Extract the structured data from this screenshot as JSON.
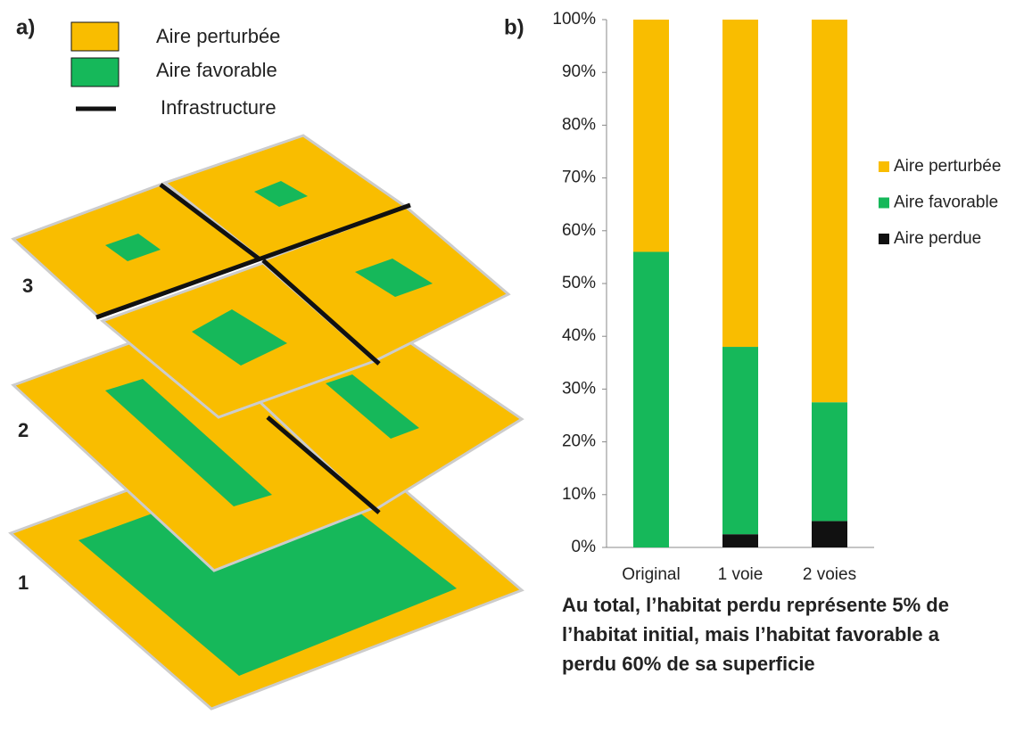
{
  "panel_labels": [
    "a)",
    "b)"
  ],
  "panel_a": {
    "legend": [
      "Aire perturbée",
      "Aire favorable",
      "Infrastructure"
    ],
    "levels": [
      "1",
      "2",
      "3"
    ]
  },
  "chart_data": {
    "type": "stacked_bar",
    "categories": [
      "Original",
      "1 voie",
      "2 voies"
    ],
    "series": [
      {
        "name": "Aire perturbée",
        "color": "#f9bd00",
        "values": [
          44,
          62,
          72.5
        ]
      },
      {
        "name": "Aire favorable",
        "color": "#16b85a",
        "values": [
          56,
          35.5,
          22.5
        ]
      },
      {
        "name": "Aire perdue",
        "color": "#111111",
        "values": [
          0,
          2.5,
          5
        ]
      }
    ],
    "ylim": [
      0,
      100
    ],
    "yticks": [
      {
        "value": 0,
        "label": "0%"
      },
      {
        "value": 10,
        "label": "10%"
      },
      {
        "value": 20,
        "label": "20%"
      },
      {
        "value": 30,
        "label": "30%"
      },
      {
        "value": 40,
        "label": "40%"
      },
      {
        "value": 50,
        "label": "50%"
      },
      {
        "value": 60,
        "label": "60%"
      },
      {
        "value": 70,
        "label": "70%"
      },
      {
        "value": 80,
        "label": "80%"
      },
      {
        "value": 90,
        "label": "90%"
      },
      {
        "value": 100,
        "label": "100%"
      }
    ],
    "legend": "right",
    "annotation": [
      "Au total, l’habitat perdu représente 5% de",
      "l’habitat initial, mais l’habitat favorable a",
      "perdu 60% de sa superficie"
    ]
  }
}
